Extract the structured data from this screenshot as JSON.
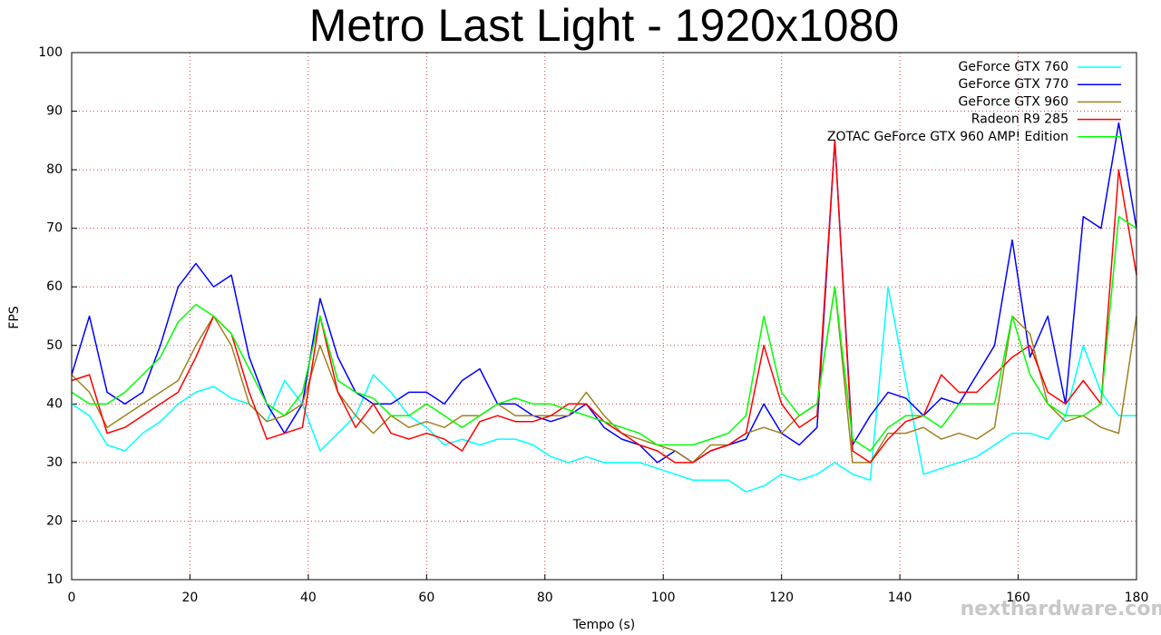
{
  "chart_data": {
    "type": "line",
    "title": "Metro Last Light - 1920x1080",
    "x_label": "Tempo (s)",
    "y_label": "FPS",
    "watermark": "nexthardware.com",
    "xlim": [
      0,
      180
    ],
    "ylim": [
      10,
      100
    ],
    "xticks": [
      0,
      20,
      40,
      60,
      80,
      100,
      120,
      140,
      160,
      180
    ],
    "yticks": [
      10,
      20,
      30,
      40,
      50,
      60,
      70,
      80,
      90,
      100
    ],
    "grid": true,
    "legend": "upper right",
    "x": [
      0,
      3,
      6,
      9,
      12,
      15,
      18,
      21,
      24,
      27,
      30,
      33,
      36,
      39,
      42,
      45,
      48,
      51,
      54,
      57,
      60,
      63,
      66,
      69,
      72,
      75,
      78,
      81,
      84,
      87,
      90,
      93,
      96,
      99,
      102,
      105,
      108,
      111,
      114,
      117,
      120,
      123,
      126,
      129,
      132,
      135,
      138,
      141,
      144,
      147,
      150,
      153,
      156,
      159,
      162,
      165,
      168,
      171,
      174,
      177,
      180
    ],
    "series": [
      {
        "name": "GeForce GTX 760",
        "color": "#00ffff",
        "values": [
          40,
          38,
          33,
          32,
          35,
          37,
          40,
          42,
          43,
          41,
          40,
          37,
          44,
          40,
          32,
          35,
          38,
          45,
          42,
          38,
          36,
          33,
          34,
          33,
          34,
          34,
          33,
          31,
          30,
          31,
          30,
          30,
          30,
          29,
          28,
          27,
          27,
          27,
          25,
          26,
          28,
          27,
          28,
          30,
          28,
          27,
          60,
          44,
          28,
          29,
          30,
          31,
          33,
          35,
          35,
          34,
          38,
          50,
          42,
          38,
          38
        ]
      },
      {
        "name": "GeForce GTX 770",
        "color": "#0000ff",
        "values": [
          45,
          55,
          42,
          40,
          42,
          50,
          60,
          64,
          60,
          62,
          48,
          40,
          35,
          40,
          58,
          48,
          42,
          40,
          40,
          42,
          42,
          40,
          44,
          46,
          40,
          40,
          38,
          37,
          38,
          40,
          36,
          34,
          33,
          30,
          32,
          30,
          32,
          33,
          34,
          40,
          35,
          33,
          36,
          85,
          33,
          38,
          42,
          41,
          38,
          41,
          40,
          45,
          50,
          68,
          48,
          55,
          40,
          72,
          70,
          88,
          70
        ]
      },
      {
        "name": "GeForce GTX 960",
        "color": "#a08020",
        "values": [
          45,
          42,
          36,
          38,
          40,
          42,
          44,
          50,
          55,
          50,
          40,
          37,
          38,
          40,
          50,
          42,
          38,
          35,
          38,
          36,
          37,
          36,
          38,
          38,
          40,
          38,
          38,
          38,
          38,
          42,
          38,
          35,
          34,
          33,
          32,
          30,
          33,
          33,
          35,
          36,
          35,
          38,
          40,
          60,
          30,
          30,
          35,
          35,
          36,
          34,
          35,
          34,
          36,
          55,
          52,
          40,
          37,
          38,
          36,
          35,
          55
        ]
      },
      {
        "name": "Radeon R9 285",
        "color": "#ff0000",
        "values": [
          44,
          45,
          35,
          36,
          38,
          40,
          42,
          48,
          55,
          52,
          42,
          34,
          35,
          36,
          55,
          42,
          36,
          40,
          35,
          34,
          35,
          34,
          32,
          37,
          38,
          37,
          37,
          38,
          40,
          40,
          37,
          35,
          33,
          32,
          30,
          30,
          32,
          33,
          35,
          50,
          40,
          36,
          38,
          85,
          32,
          30,
          34,
          37,
          38,
          45,
          42,
          42,
          45,
          48,
          50,
          42,
          40,
          44,
          40,
          80,
          62
        ]
      },
      {
        "name": "ZOTAC GeForce GTX 960 AMP! Edition",
        "color": "#00ff00",
        "values": [
          42,
          40,
          40,
          42,
          45,
          48,
          54,
          57,
          55,
          52,
          46,
          40,
          38,
          42,
          55,
          44,
          42,
          41,
          38,
          38,
          40,
          38,
          36,
          38,
          40,
          41,
          40,
          40,
          39,
          38,
          37,
          36,
          35,
          33,
          33,
          33,
          34,
          35,
          38,
          55,
          42,
          38,
          40,
          60,
          34,
          32,
          36,
          38,
          38,
          36,
          40,
          40,
          40,
          55,
          45,
          40,
          38,
          38,
          40,
          72,
          70
        ]
      }
    ]
  }
}
